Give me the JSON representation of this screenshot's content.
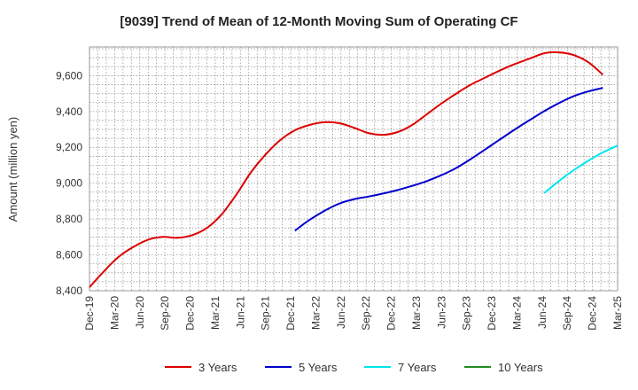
{
  "chart_data": {
    "type": "line",
    "title": "[9039]  Trend of Mean of 12-Month Moving Sum of Operating CF",
    "xlabel": "",
    "ylabel": "Amount (million yen)",
    "ylim": [
      8400,
      9760
    ],
    "yticks": [
      8400,
      8600,
      8800,
      9000,
      9200,
      9400,
      9600
    ],
    "ytick_labels": [
      "8,400",
      "8,600",
      "8,800",
      "9,000",
      "9,200",
      "9,400",
      "9,600"
    ],
    "xticks": [
      "Dec-19",
      "Mar-20",
      "Jun-20",
      "Sep-20",
      "Dec-20",
      "Mar-21",
      "Jun-21",
      "Sep-21",
      "Dec-21",
      "Mar-22",
      "Jun-22",
      "Sep-22",
      "Dec-22",
      "Mar-23",
      "Jun-23",
      "Sep-23",
      "Dec-23",
      "Mar-24",
      "Jun-24",
      "Sep-24",
      "Dec-24",
      "Mar-25"
    ],
    "grid": true,
    "legend_position": "bottom",
    "series": [
      {
        "name": "3 Years",
        "color": "#dd0000",
        "points": [
          [
            0,
            8420
          ],
          [
            1,
            8510
          ],
          [
            2,
            8590
          ],
          [
            3,
            8645
          ],
          [
            4,
            8685
          ],
          [
            5,
            8700
          ],
          [
            6,
            8695
          ],
          [
            7,
            8710
          ],
          [
            8,
            8750
          ],
          [
            9,
            8825
          ],
          [
            10,
            8935
          ],
          [
            11,
            9060
          ],
          [
            12,
            9160
          ],
          [
            13,
            9240
          ],
          [
            14,
            9295
          ],
          [
            15,
            9325
          ],
          [
            16,
            9340
          ],
          [
            17,
            9335
          ],
          [
            18,
            9310
          ],
          [
            19,
            9280
          ],
          [
            20,
            9270
          ],
          [
            21,
            9285
          ],
          [
            22,
            9325
          ],
          [
            23,
            9385
          ],
          [
            24,
            9445
          ],
          [
            25,
            9500
          ],
          [
            26,
            9550
          ],
          [
            27,
            9590
          ],
          [
            28,
            9630
          ],
          [
            29,
            9665
          ],
          [
            30,
            9695
          ],
          [
            31,
            9725
          ],
          [
            32,
            9730
          ],
          [
            33,
            9715
          ],
          [
            34,
            9675
          ],
          [
            35,
            9605
          ]
        ]
      },
      {
        "name": "5 Years",
        "color": "#0000cc",
        "points": [
          [
            14,
            8735
          ],
          [
            15,
            8795
          ],
          [
            16,
            8845
          ],
          [
            17,
            8885
          ],
          [
            18,
            8910
          ],
          [
            19,
            8925
          ],
          [
            20,
            8942
          ],
          [
            21,
            8962
          ],
          [
            22,
            8985
          ],
          [
            23,
            9012
          ],
          [
            24,
            9045
          ],
          [
            25,
            9085
          ],
          [
            26,
            9135
          ],
          [
            27,
            9190
          ],
          [
            28,
            9245
          ],
          [
            29,
            9300
          ],
          [
            30,
            9352
          ],
          [
            31,
            9402
          ],
          [
            32,
            9447
          ],
          [
            33,
            9485
          ],
          [
            34,
            9512
          ],
          [
            35,
            9532
          ]
        ]
      },
      {
        "name": "7 Years",
        "color": "#00e5ee",
        "points": [
          [
            31,
            8945
          ],
          [
            32,
            9012
          ],
          [
            33,
            9072
          ],
          [
            34,
            9125
          ],
          [
            35,
            9172
          ],
          [
            36,
            9210
          ]
        ]
      },
      {
        "name": "10 Years",
        "color": "#228b22",
        "points": []
      }
    ]
  }
}
